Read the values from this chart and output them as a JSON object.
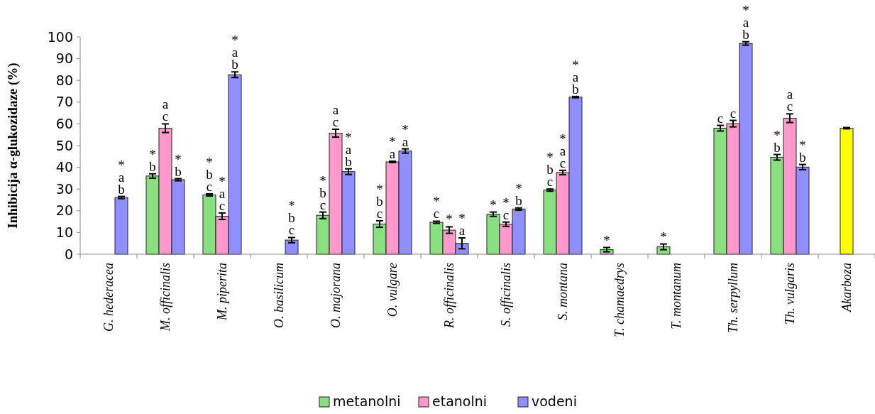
{
  "chart_data": {
    "type": "bar",
    "ylabel": "Inhibicija α-glukozidaze (%)",
    "categories": [
      "G. hederacea",
      "M. officinalis",
      "M. piperita",
      "O. basilicum",
      "O. majorana",
      "O. vulgare",
      "R. officinalis",
      "S. officinalis",
      "S. montana",
      "T. chamaedrys",
      "T. montanum",
      "Th. serpyllum",
      "Th. vulgaris",
      "Akarboza"
    ],
    "series": [
      {
        "name": "metanolni",
        "color": "#88e080",
        "values": [
          null,
          36,
          27.3,
          null,
          17.9,
          13.9,
          14.7,
          18.4,
          29.5,
          2.1,
          3.4,
          58,
          44.6,
          null
        ],
        "errors": [
          null,
          1,
          0.5,
          null,
          1.5,
          1.5,
          0.5,
          1,
          0.5,
          1,
          1.3,
          1.3,
          1.3,
          null
        ],
        "value_labels": [
          null,
          "*\nb",
          "*\nb\nc",
          null,
          "*\nb\nc",
          "*\nb\nc",
          "*\nc",
          "*",
          "*\nb\nc",
          "*",
          "*",
          "c",
          "*\nb",
          null
        ]
      },
      {
        "name": "etanolni",
        "color": "#ff99cc",
        "values": [
          null,
          58,
          17.5,
          null,
          55.7,
          42.5,
          11.1,
          13.8,
          37.6,
          null,
          null,
          60.1,
          62.6,
          null
        ],
        "errors": [
          null,
          2,
          1.5,
          null,
          1.8,
          0.3,
          1.5,
          1,
          1,
          null,
          null,
          1.5,
          2,
          null
        ],
        "value_labels": [
          null,
          "a\nc",
          "*\na\nc",
          null,
          "a\nc",
          "*\na",
          "*",
          "*\nc",
          "*\na\nc",
          null,
          null,
          "c",
          "a\nc",
          null
        ]
      },
      {
        "name": "vodeni",
        "color": "#8f8fff",
        "values": [
          26.1,
          34.3,
          82.6,
          6.5,
          38,
          47.5,
          5,
          20.8,
          72.3,
          null,
          null,
          97,
          40.1,
          null
        ],
        "errors": [
          0.5,
          0.5,
          1.3,
          1.2,
          1.3,
          1,
          2.5,
          0.5,
          0.3,
          null,
          null,
          0.8,
          1.2,
          null
        ],
        "value_labels": [
          "*\na\nb",
          "*\nb",
          "*\na\nb",
          "*\nb\nc",
          "*\na\nb",
          "*\na",
          "*\na",
          "*\nb",
          "*\na\nb",
          null,
          null,
          "*\na\nb",
          "*\nb",
          null
        ]
      },
      {
        "color": "#ffff00",
        "values": [
          null,
          null,
          null,
          null,
          null,
          null,
          null,
          null,
          null,
          null,
          null,
          null,
          null,
          58
        ],
        "errors": [
          null,
          null,
          null,
          null,
          null,
          null,
          null,
          null,
          null,
          null,
          null,
          null,
          null,
          0.3
        ]
      }
    ],
    "ylim": [
      0,
      100
    ],
    "yticks": [
      0,
      10,
      20,
      30,
      40,
      50,
      60,
      70,
      80,
      90,
      100
    ],
    "grid": false,
    "legend": "bottom"
  }
}
